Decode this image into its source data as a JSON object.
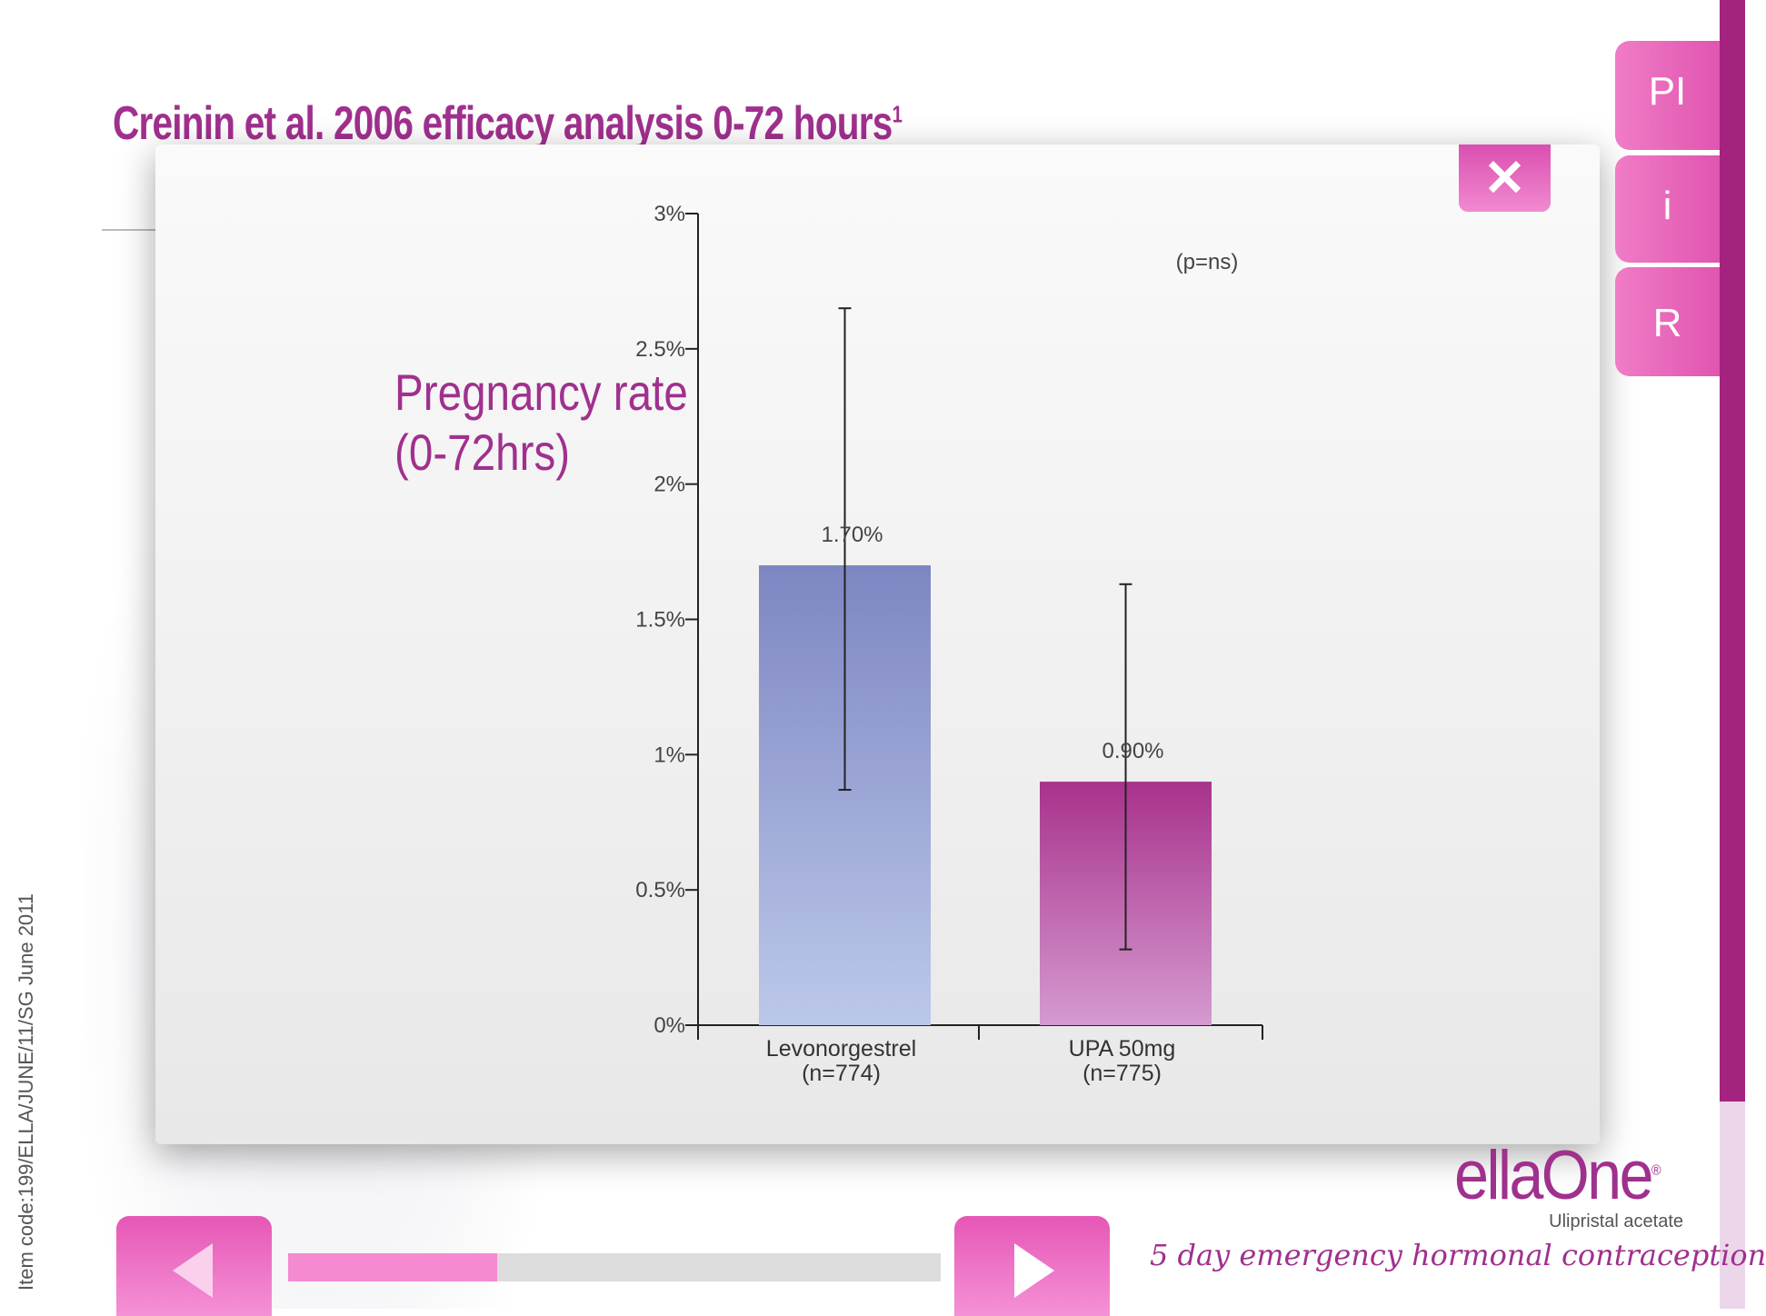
{
  "header": {
    "title": "Creinin et al. 2006 efficacy analysis 0-72 hours",
    "title_sup": "1"
  },
  "side_tabs": [
    {
      "label": "PI"
    },
    {
      "label": "i"
    },
    {
      "label": "R"
    }
  ],
  "modal": {
    "close_label": "✕",
    "heading_line1": "Pregnancy rate",
    "heading_line2": "(0-72hrs)"
  },
  "chart_data": {
    "type": "bar",
    "title": "Pregnancy rate (0-72hrs)",
    "categories": [
      "Levonorgestrel\n(n=774)",
      "UPA 50mg\n(n=775)"
    ],
    "category_lines": [
      [
        "Levonorgestrel",
        "(n=774)"
      ],
      [
        "UPA 50mg",
        "(n=775)"
      ]
    ],
    "values": [
      1.7,
      0.9
    ],
    "data_labels": [
      "1.70%",
      "0.90%"
    ],
    "error_low": [
      0.87,
      0.28
    ],
    "error_high": [
      2.65,
      1.63
    ],
    "ylim": [
      0,
      3
    ],
    "yticks": [
      0,
      0.5,
      1,
      1.5,
      2,
      2.5,
      3
    ],
    "ytick_labels": [
      "0%",
      "0.5%",
      "1%",
      "1.5%",
      "2%",
      "2.5%",
      "3%"
    ],
    "annotation": "(p=ns)",
    "colors": [
      "#8a93c8",
      "#b2368f"
    ]
  },
  "footer": {
    "item_code": "Item code:199/ELLA/JUNE/11/SG June 2011",
    "progress": 0.32,
    "brand": "ellaOne",
    "brand_reg": "®",
    "brand_sub": "Ulipristal acetate",
    "tagline": "5 day emergency hormonal contraception"
  }
}
